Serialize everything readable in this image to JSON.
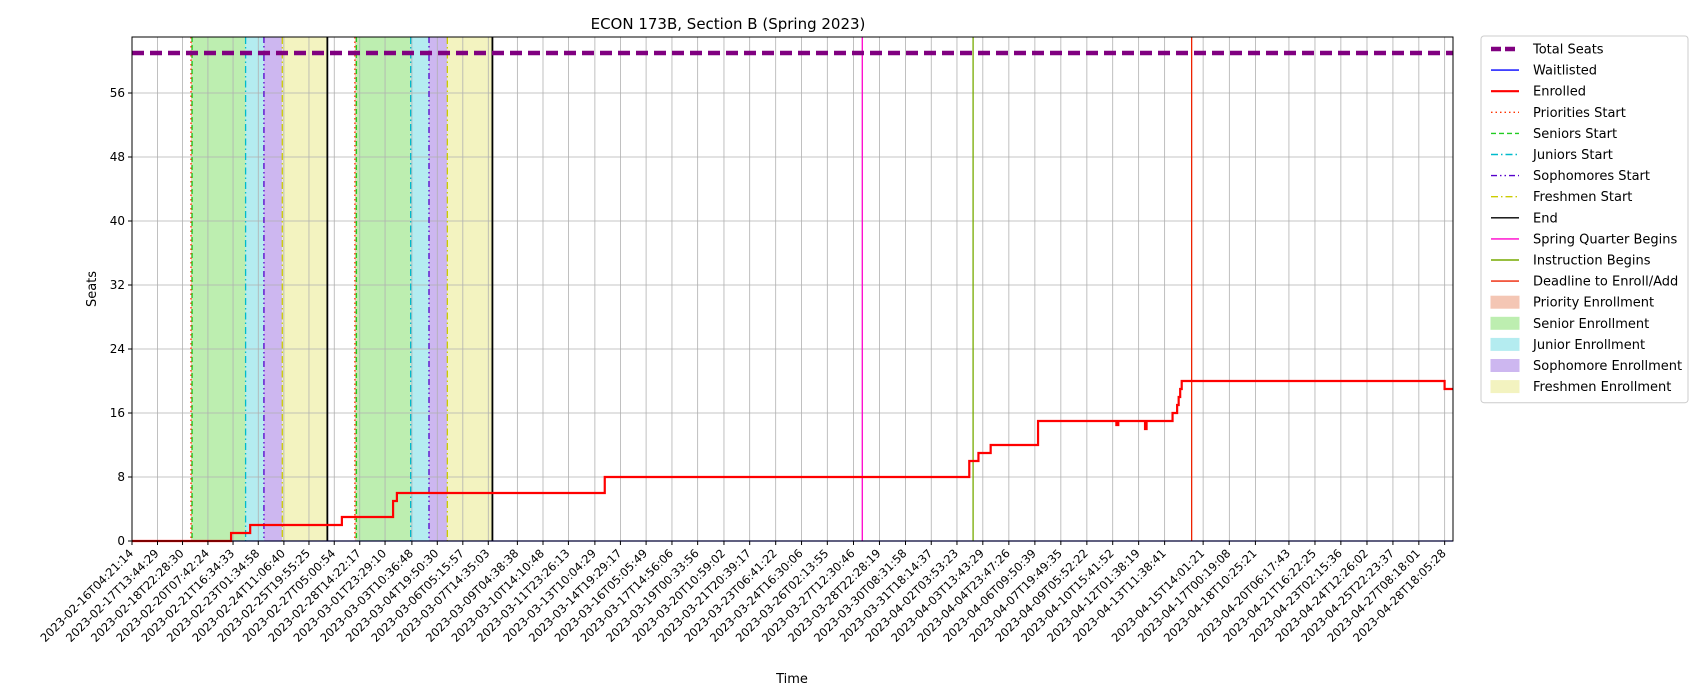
{
  "chart_data": {
    "type": "line",
    "title": "ECON 173B, Section B (Spring 2023)",
    "xlabel": "Time",
    "ylabel": "Seats",
    "x_range": [
      "2023-02-16T04:21:14",
      "2023-04-29T05:00:00"
    ],
    "ylim": [
      0,
      63
    ],
    "yticks": [
      0,
      8,
      16,
      24,
      32,
      40,
      48,
      56
    ],
    "grid": true,
    "legend_position": "outside-right",
    "xtick_labels": [
      "2023-02-16T04:21:14",
      "2023-02-17T13:44:29",
      "2023-02-18T22:28:30",
      "2023-02-20T07:42:24",
      "2023-02-21T16:34:33",
      "2023-02-23T01:34:58",
      "2023-02-24T11:06:40",
      "2023-02-25T19:55:25",
      "2023-02-27T05:00:54",
      "2023-02-28T14:22:17",
      "2023-03-01T23:29:10",
      "2023-03-03T10:36:48",
      "2023-03-04T19:50:30",
      "2023-03-06T05:15:57",
      "2023-03-07T14:35:03",
      "2023-03-09T04:38:38",
      "2023-03-10T14:10:48",
      "2023-03-11T23:26:13",
      "2023-03-13T10:04:29",
      "2023-03-14T19:29:17",
      "2023-03-16T05:05:49",
      "2023-03-17T14:56:06",
      "2023-03-19T00:33:56",
      "2023-03-20T10:59:02",
      "2023-03-21T20:39:17",
      "2023-03-23T06:41:22",
      "2023-03-24T16:30:06",
      "2023-03-26T02:13:55",
      "2023-03-27T12:30:46",
      "2023-03-28T22:28:19",
      "2023-03-30T08:31:58",
      "2023-03-31T18:14:37",
      "2023-04-02T03:53:23",
      "2023-04-03T13:43:29",
      "2023-04-04T23:47:26",
      "2023-04-06T09:50:39",
      "2023-04-07T19:49:35",
      "2023-04-09T05:52:22",
      "2023-04-10T15:41:52",
      "2023-04-12T01:38:19",
      "2023-04-13T11:38:41",
      "2023-04-15T14:01:21",
      "2023-04-17T00:19:08",
      "2023-04-18T10:25:21",
      "2023-04-20T06:17:43",
      "2023-04-21T16:22:25",
      "2023-04-23T02:15:36",
      "2023-04-24T12:26:02",
      "2023-04-25T22:23:37",
      "2023-04-27T08:18:01",
      "2023-04-28T18:05:28"
    ],
    "series": [
      {
        "name": "Total Seats",
        "style": "dashed",
        "color": "#800080",
        "x": [
          "2023-02-16T04:21:14",
          "2023-04-29T05:00:00"
        ],
        "y": [
          61,
          61
        ]
      },
      {
        "name": "Waitlisted",
        "style": "solid",
        "color": "#0000ff",
        "x": [
          "2023-02-16T04:21:14",
          "2023-04-29T05:00:00"
        ],
        "y": [
          0,
          0
        ]
      },
      {
        "name": "Enrolled",
        "style": "steps",
        "color": "#ff0000",
        "x": [
          "2023-02-16T04:21:14",
          "2023-02-21T14:00:00",
          "2023-02-22T15:00:00",
          "2023-02-27T15:00:00",
          "2023-03-02T10:00:00",
          "2023-03-02T15:00:00",
          "2023-03-13T23:00:00",
          "2023-04-02T20:00:00",
          "2023-04-03T08:00:00",
          "2023-04-04T00:00:00",
          "2023-04-06T14:00:00",
          "2023-04-10T20:30:00",
          "2023-04-10T23:00:00",
          "2023-04-12T10:00:00",
          "2023-04-12T12:00:00",
          "2023-04-12T13:00:00",
          "2023-04-13T22:00:00",
          "2023-04-14T04:00:00",
          "2023-04-14T06:00:00",
          "2023-04-14T08:00:00",
          "2023-04-14T10:00:00",
          "2023-04-28T18:00:00"
        ],
        "y": [
          0,
          1,
          2,
          3,
          5,
          6,
          8,
          10,
          11,
          12,
          15,
          14.5,
          15,
          14,
          15,
          15,
          16,
          17,
          18,
          19,
          20,
          19
        ]
      }
    ],
    "vertical_lines": [
      {
        "name": "Priorities Start",
        "style": "dotted",
        "color": "#ff3300",
        "x": [
          "2023-02-19T09:30:00",
          "2023-02-28T08:00:00"
        ]
      },
      {
        "name": "Seniors Start",
        "style": "dashed",
        "color": "#22cc22",
        "x": [
          "2023-02-19T11:00:00",
          "2023-02-28T10:00:00"
        ]
      },
      {
        "name": "Juniors Start",
        "style": "dashdot",
        "color": "#00bbcc",
        "x": [
          "2023-02-22T09:00:00",
          "2023-03-03T09:00:00"
        ]
      },
      {
        "name": "Sophomores Start",
        "style": "dashdotdot",
        "color": "#5500cc",
        "x": [
          "2023-02-23T09:00:00",
          "2023-03-04T09:00:00"
        ]
      },
      {
        "name": "Freshmen Start",
        "style": "dashdot",
        "color": "#cccc00",
        "x": [
          "2023-02-24T09:00:00",
          "2023-03-05T09:00:00"
        ]
      },
      {
        "name": "End",
        "style": "solid",
        "color": "#000000",
        "x": [
          "2023-02-26T20:00:00",
          "2023-03-07T20:00:00"
        ]
      },
      {
        "name": "Spring Quarter Begins",
        "style": "solid",
        "color": "#ff00cc",
        "x": [
          "2023-03-28T00:00:00"
        ]
      },
      {
        "name": "Instruction Begins",
        "style": "solid",
        "color": "#77aa00",
        "x": [
          "2023-04-03T01:00:00"
        ]
      },
      {
        "name": "Deadline to Enroll/Add",
        "style": "solid",
        "color": "#ee2200",
        "x": [
          "2023-04-14T23:00:00"
        ]
      }
    ],
    "shaded_regions": [
      {
        "name": "Priority Enrollment",
        "color": "#f4c6b4",
        "ranges": [
          [
            "2023-02-19T09:30:00",
            "2023-02-19T11:00:00"
          ],
          [
            "2023-02-28T08:00:00",
            "2023-02-28T10:00:00"
          ]
        ]
      },
      {
        "name": "Senior Enrollment",
        "color": "#bdeeb0",
        "ranges": [
          [
            "2023-02-19T11:00:00",
            "2023-02-22T09:00:00"
          ],
          [
            "2023-02-28T10:00:00",
            "2023-03-03T09:00:00"
          ]
        ]
      },
      {
        "name": "Junior Enrollment",
        "color": "#b4ecf0",
        "ranges": [
          [
            "2023-02-22T09:00:00",
            "2023-02-23T09:00:00"
          ],
          [
            "2023-03-03T09:00:00",
            "2023-03-04T09:00:00"
          ]
        ]
      },
      {
        "name": "Sophomore Enrollment",
        "color": "#cdb7f0",
        "ranges": [
          [
            "2023-02-23T09:00:00",
            "2023-02-24T09:00:00"
          ],
          [
            "2023-03-04T09:00:00",
            "2023-03-05T09:00:00"
          ]
        ]
      },
      {
        "name": "Freshmen Enrollment",
        "color": "#f3f3c0",
        "ranges": [
          [
            "2023-02-24T09:00:00",
            "2023-02-26T20:00:00"
          ],
          [
            "2023-03-05T09:00:00",
            "2023-03-07T20:00:00"
          ]
        ]
      }
    ],
    "legend": [
      {
        "label": "Total Seats",
        "kind": "line",
        "color": "#800080",
        "style": "thickdash"
      },
      {
        "label": "Waitlisted",
        "kind": "line",
        "color": "#0000ff",
        "style": "solid"
      },
      {
        "label": "Enrolled",
        "kind": "line",
        "color": "#ff0000",
        "style": "solidthick"
      },
      {
        "label": "Priorities Start",
        "kind": "line",
        "color": "#ff3300",
        "style": "dotted"
      },
      {
        "label": "Seniors Start",
        "kind": "line",
        "color": "#22cc22",
        "style": "dashed"
      },
      {
        "label": "Juniors Start",
        "kind": "line",
        "color": "#00bbcc",
        "style": "dashdot"
      },
      {
        "label": "Sophomores Start",
        "kind": "line",
        "color": "#5500cc",
        "style": "dashdotdot"
      },
      {
        "label": "Freshmen Start",
        "kind": "line",
        "color": "#cccc00",
        "style": "dashdot"
      },
      {
        "label": "End",
        "kind": "line",
        "color": "#000000",
        "style": "solid"
      },
      {
        "label": "Spring Quarter Begins",
        "kind": "line",
        "color": "#ff00cc",
        "style": "solid"
      },
      {
        "label": "Instruction Begins",
        "kind": "line",
        "color": "#77aa00",
        "style": "solid"
      },
      {
        "label": "Deadline to Enroll/Add",
        "kind": "line",
        "color": "#ee2200",
        "style": "solid"
      },
      {
        "label": "Priority Enrollment",
        "kind": "patch",
        "color": "#f4c6b4"
      },
      {
        "label": "Senior Enrollment",
        "kind": "patch",
        "color": "#bdeeb0"
      },
      {
        "label": "Junior Enrollment",
        "kind": "patch",
        "color": "#b4ecf0"
      },
      {
        "label": "Sophomore Enrollment",
        "kind": "patch",
        "color": "#cdb7f0"
      },
      {
        "label": "Freshmen Enrollment",
        "kind": "patch",
        "color": "#f3f3c0"
      }
    ]
  }
}
